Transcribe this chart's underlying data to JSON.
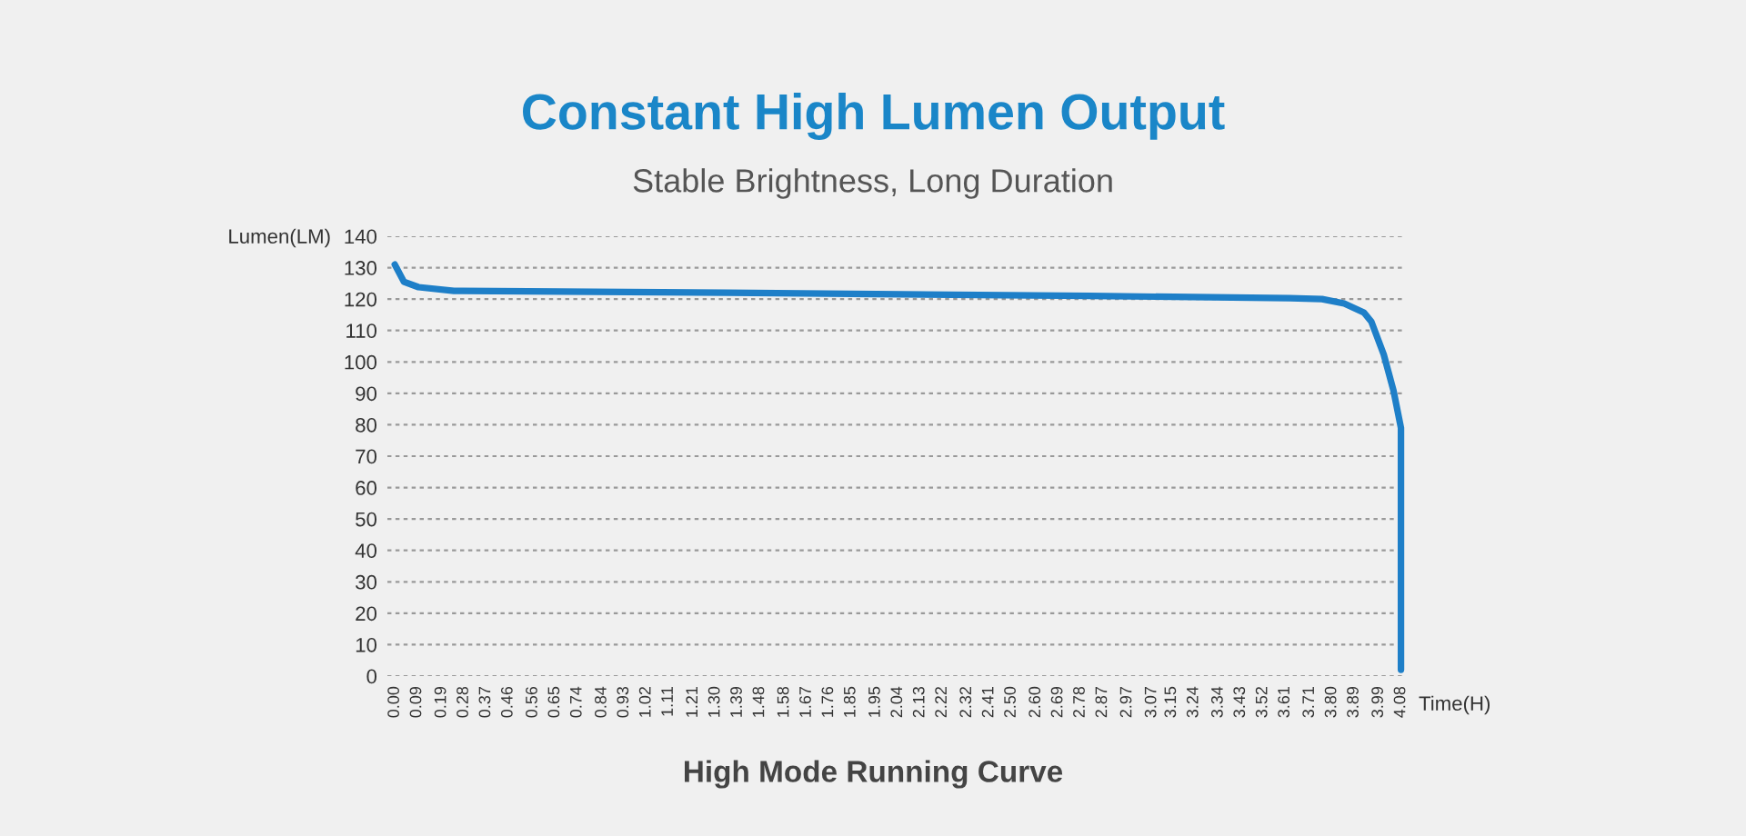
{
  "chart_data": {
    "type": "line",
    "title": "Constant High Lumen Output",
    "subtitle": "Stable Brightness, Long Duration",
    "xlabel": "Time(H)",
    "ylabel": "Lumen(LM)",
    "annotations": [
      "High Mode Running Curve"
    ],
    "series": [
      {
        "color": "#1e7fc8",
        "x": [
          0,
          0.037,
          0.096,
          0.24,
          1.35,
          2.82,
          3.63,
          3.76,
          3.85,
          3.93,
          3.96,
          4.01,
          4.05,
          4.08,
          4.08
        ],
        "values": [
          131,
          125.5,
          123.8,
          122.6,
          122,
          121,
          120.3,
          120,
          118.6,
          115.7,
          112.8,
          102.4,
          90.8,
          79,
          2
        ]
      }
    ],
    "xlim": [
      -0.03,
      4.1
    ],
    "xticks": [
      {
        "value": 0,
        "label": "0.00"
      },
      0.09,
      0.19,
      0.28,
      0.37,
      0.46,
      0.56,
      0.65,
      0.74,
      0.84,
      0.93,
      1.02,
      1.11,
      1.21,
      {
        "value": 1.3,
        "label": "1.30"
      },
      1.39,
      1.48,
      1.58,
      1.67,
      1.76,
      1.85,
      1.95,
      2.04,
      2.13,
      2.22,
      2.32,
      2.41,
      {
        "value": 2.5,
        "label": "2.50"
      },
      {
        "value": 2.6,
        "label": "2.60"
      },
      2.69,
      2.78,
      2.87,
      2.97,
      3.07,
      3.15,
      3.24,
      3.34,
      3.43,
      3.52,
      3.61,
      3.71,
      {
        "value": 3.8,
        "label": "3.80"
      },
      3.89,
      3.99,
      4.08
    ],
    "ylim": [
      0,
      140
    ],
    "yticks": [
      0,
      10,
      20,
      30,
      40,
      50,
      60,
      70,
      80,
      90,
      100,
      110,
      120,
      130,
      140
    ],
    "grid": "y",
    "marker": "none",
    "line_style": "solid"
  }
}
